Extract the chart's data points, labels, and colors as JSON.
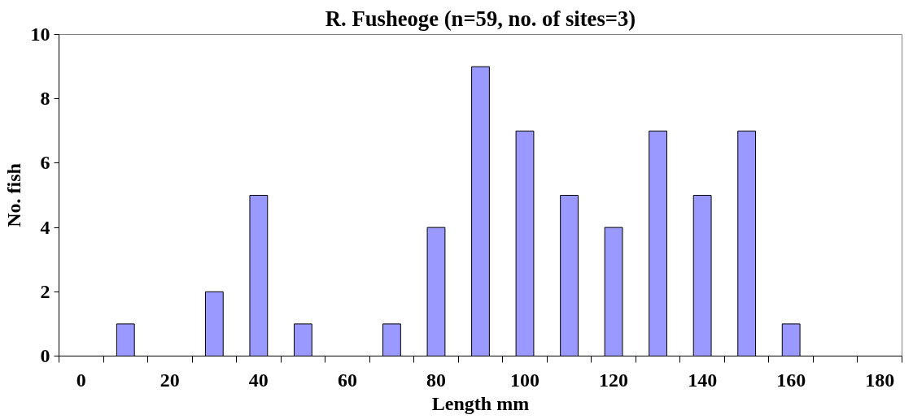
{
  "chart_data": {
    "type": "bar",
    "title": "R. Fusheoge (n=59, no. of sites=3)",
    "xlabel": "Length mm",
    "ylabel": "No. fish",
    "categories": [
      "0",
      null,
      "20",
      null,
      "40",
      null,
      "60",
      null,
      "80",
      null,
      "100",
      null,
      "120",
      null,
      "140",
      null,
      "160",
      null,
      "180"
    ],
    "values": [
      0,
      1,
      0,
      2,
      5,
      1,
      0,
      1,
      4,
      9,
      7,
      5,
      4,
      7,
      5,
      7,
      1,
      0,
      0
    ],
    "color": "#9999ff",
    "ylim": [
      0,
      10
    ],
    "yticks": [
      0,
      2,
      4,
      6,
      8,
      10
    ],
    "grid": false
  }
}
